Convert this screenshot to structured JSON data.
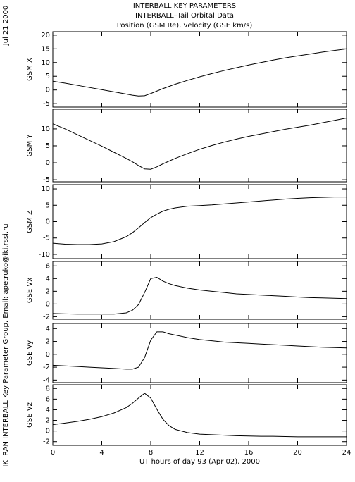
{
  "header": {
    "title": "INTERBALL KEY PARAMETERS",
    "subtitle": "INTERBALL–Tail Orbital Data",
    "units": "Position (GSM Re), velocity (GSE km/s)",
    "date": "Jul 21 2000",
    "credit": "IKI RAN INTERBALL Key Parameter Group, Email: apetruko@iki.rssi.ru"
  },
  "chart_data": [
    {
      "type": "line",
      "ylabel": "GSM X",
      "color": "#000000",
      "x": [
        0,
        1,
        2,
        3,
        4,
        5,
        6,
        6.5,
        7,
        7.5,
        8,
        8.5,
        9,
        9.5,
        10,
        11,
        12,
        13,
        14,
        15,
        16,
        17,
        18,
        19,
        20,
        21,
        22,
        23,
        24
      ],
      "values": [
        3.2,
        2.5,
        1.7,
        0.9,
        0.1,
        -0.7,
        -1.5,
        -1.9,
        -2.2,
        -2.1,
        -1.3,
        -0.4,
        0.5,
        1.3,
        2.1,
        3.5,
        4.8,
        6.0,
        7.1,
        8.1,
        9.1,
        10.0,
        10.9,
        11.7,
        12.4,
        13.1,
        13.8,
        14.4,
        15.0
      ],
      "xlim": [
        0,
        24
      ],
      "xticks": [
        0,
        4,
        8,
        12,
        16,
        20,
        24
      ],
      "ylim": [
        -6.25,
        21.25
      ],
      "yticks": [
        -5,
        0,
        5,
        10,
        15,
        20
      ]
    },
    {
      "type": "line",
      "ylabel": "GSM Y",
      "color": "#000000",
      "x": [
        0,
        1,
        2,
        3,
        4,
        5,
        6,
        6.5,
        7,
        7.5,
        8,
        8.5,
        9,
        9.5,
        10,
        11,
        12,
        13,
        14,
        15,
        16,
        17,
        18,
        19,
        20,
        21,
        22,
        23,
        24
      ],
      "values": [
        11.5,
        10,
        8.3,
        6.6,
        4.9,
        3.1,
        1.3,
        0.3,
        -0.8,
        -1.8,
        -1.9,
        -1.2,
        -0.3,
        0.5,
        1.3,
        2.7,
        4.0,
        5.1,
        6.1,
        7.0,
        7.8,
        8.5,
        9.2,
        9.9,
        10.5,
        11.1,
        11.8,
        12.5,
        13.2
      ],
      "xlim": [
        0,
        24
      ],
      "xticks": [
        0,
        4,
        8,
        12,
        16,
        20,
        24
      ],
      "ylim": [
        -5.6,
        15.8
      ],
      "yticks": [
        -5,
        0,
        5,
        10
      ]
    },
    {
      "type": "line",
      "ylabel": "GSM Z",
      "color": "#000000",
      "x": [
        0,
        1,
        2,
        3,
        4,
        5,
        6,
        6.5,
        7,
        7.5,
        8,
        8.5,
        9,
        9.5,
        10,
        11,
        12,
        13,
        14,
        15,
        16,
        17,
        18,
        19,
        20,
        21,
        22,
        23,
        24
      ],
      "values": [
        -6.6,
        -6.9,
        -7.0,
        -7.0,
        -6.8,
        -6.1,
        -4.6,
        -3.4,
        -1.9,
        -0.3,
        1.2,
        2.3,
        3.2,
        3.8,
        4.2,
        4.7,
        4.9,
        5.1,
        5.4,
        5.7,
        6.0,
        6.3,
        6.6,
        6.9,
        7.1,
        7.3,
        7.4,
        7.5,
        7.5
      ],
      "xlim": [
        0,
        24
      ],
      "xticks": [
        0,
        4,
        8,
        12,
        16,
        20,
        24
      ],
      "ylim": [
        -11.3,
        11.3
      ],
      "yticks": [
        -10,
        -5,
        0,
        5,
        10
      ]
    },
    {
      "type": "line",
      "ylabel": "GSE Vx",
      "color": "#000000",
      "x": [
        0,
        1,
        2,
        3,
        4,
        5,
        6,
        6.5,
        7,
        7.5,
        8,
        8.5,
        9,
        9.5,
        10,
        11,
        12,
        13,
        14,
        15,
        16,
        17,
        18,
        19,
        20,
        21,
        22,
        23,
        24
      ],
      "values": [
        -1.5,
        -1.55,
        -1.6,
        -1.6,
        -1.6,
        -1.6,
        -1.4,
        -1.0,
        -0.1,
        1.8,
        4.0,
        4.2,
        3.6,
        3.2,
        2.9,
        2.5,
        2.2,
        2.0,
        1.8,
        1.6,
        1.5,
        1.4,
        1.3,
        1.2,
        1.1,
        1.0,
        0.95,
        0.9,
        0.85
      ],
      "xlim": [
        0,
        24
      ],
      "xticks": [
        0,
        4,
        8,
        12,
        16,
        20,
        24
      ],
      "ylim": [
        -2.4,
        6.7
      ],
      "yticks": [
        -2,
        0,
        2,
        4,
        6
      ]
    },
    {
      "type": "line",
      "ylabel": "GSE Vy",
      "color": "#000000",
      "x": [
        0,
        1,
        2,
        3,
        4,
        5,
        6,
        6.5,
        7,
        7.5,
        8,
        8.5,
        9,
        9.5,
        10,
        11,
        12,
        13,
        14,
        15,
        16,
        17,
        18,
        19,
        20,
        21,
        22,
        23,
        24
      ],
      "values": [
        -1.7,
        -1.8,
        -1.9,
        -2.0,
        -2.1,
        -2.2,
        -2.3,
        -2.3,
        -2.0,
        -0.5,
        2.2,
        3.5,
        3.5,
        3.2,
        3.0,
        2.6,
        2.3,
        2.1,
        1.9,
        1.8,
        1.7,
        1.6,
        1.5,
        1.4,
        1.3,
        1.2,
        1.1,
        1.05,
        1.0
      ],
      "xlim": [
        0,
        24
      ],
      "xticks": [
        0,
        4,
        8,
        12,
        16,
        20,
        24
      ],
      "ylim": [
        -4.4,
        4.8
      ],
      "yticks": [
        -4,
        -2,
        0,
        2,
        4
      ]
    },
    {
      "type": "line",
      "ylabel": "GSE Vz",
      "color": "#000000",
      "xlabel": "UT hours of day  93 (Apr 02), 2000",
      "show_xtick_labels": true,
      "x": [
        0,
        1,
        2,
        3,
        4,
        5,
        6,
        6.5,
        7,
        7.5,
        8,
        8.5,
        9,
        9.5,
        10,
        11,
        12,
        13,
        14,
        15,
        16,
        17,
        18,
        19,
        20,
        21,
        22,
        23,
        24
      ],
      "values": [
        1.2,
        1.5,
        1.8,
        2.2,
        2.7,
        3.4,
        4.4,
        5.2,
        6.2,
        7.1,
        6.2,
        4.1,
        2.2,
        1.0,
        0.3,
        -0.3,
        -0.6,
        -0.7,
        -0.8,
        -0.9,
        -0.95,
        -1.0,
        -1.0,
        -1.05,
        -1.1,
        -1.1,
        -1.1,
        -1.1,
        -1.1
      ],
      "xlim": [
        0,
        24
      ],
      "xticks": [
        0,
        4,
        8,
        12,
        16,
        20,
        24
      ],
      "ylim": [
        -2.7,
        8.7
      ],
      "yticks": [
        -2,
        0,
        2,
        4,
        6,
        8
      ]
    }
  ]
}
